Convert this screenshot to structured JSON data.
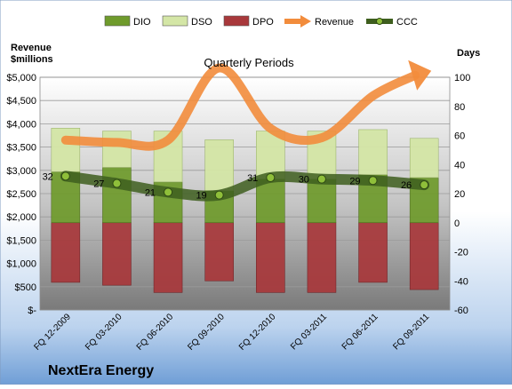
{
  "company": "NextEra Energy",
  "chart_data": {
    "type": "bar",
    "title": "Quarterly Periods",
    "left_axis_label": [
      "Revenue",
      "$millions"
    ],
    "right_axis_label": "Days",
    "categories": [
      "FQ 12-2009",
      "FQ 03-2010",
      "FQ 06-2010",
      "FQ 09-2010",
      "FQ 12-2010",
      "FQ 03-2011",
      "FQ 06-2011",
      "FQ 09-2011"
    ],
    "left_ylim": [
      0,
      5000
    ],
    "left_ticks": [
      0,
      500,
      1000,
      1500,
      2000,
      2500,
      3000,
      3500,
      4000,
      4500,
      5000
    ],
    "left_tick_labels": [
      "$-",
      "$500",
      "$1,000",
      "$1,500",
      "$2,000",
      "$2,500",
      "$3,000",
      "$3,500",
      "$4,000",
      "$4,500",
      "$5,000"
    ],
    "right_ylim": [
      -60,
      100
    ],
    "right_ticks": [
      -60,
      -40,
      -20,
      0,
      20,
      40,
      60,
      80,
      100
    ],
    "right_tick_labels": [
      "-60",
      "-40",
      "-20",
      "0",
      "20",
      "40",
      "60",
      "80",
      "100"
    ],
    "grid": true,
    "legend_position": "top",
    "series": [
      {
        "name": "DIO",
        "type": "stacked-bar",
        "axis": "right",
        "color": "#6f9b2c",
        "values": [
          35,
          38,
          28,
          22,
          30,
          30,
          33,
          31
        ]
      },
      {
        "name": "DSO",
        "type": "stacked-bar",
        "axis": "right",
        "color": "#d4e6a6",
        "values": [
          30,
          25,
          35,
          35,
          33,
          33,
          31,
          27
        ]
      },
      {
        "name": "DPO",
        "type": "stacked-bar",
        "axis": "right",
        "color": "#a8383b",
        "values": [
          -41,
          -43,
          -48,
          -40,
          -48,
          -48,
          -41,
          -46
        ]
      },
      {
        "name": "Revenue",
        "type": "line",
        "axis": "left",
        "color": "#f28c3c",
        "values": [
          3650,
          3600,
          3650,
          5200,
          3900,
          3700,
          4600,
          5100
        ]
      },
      {
        "name": "CCC",
        "type": "line",
        "axis": "right",
        "color": "#3e5e1e",
        "values": [
          32,
          27,
          21,
          19,
          31,
          30,
          29,
          26
        ],
        "data_labels": [
          "32",
          "27",
          "21",
          "19",
          "31",
          "30",
          "29",
          "26"
        ]
      }
    ]
  }
}
